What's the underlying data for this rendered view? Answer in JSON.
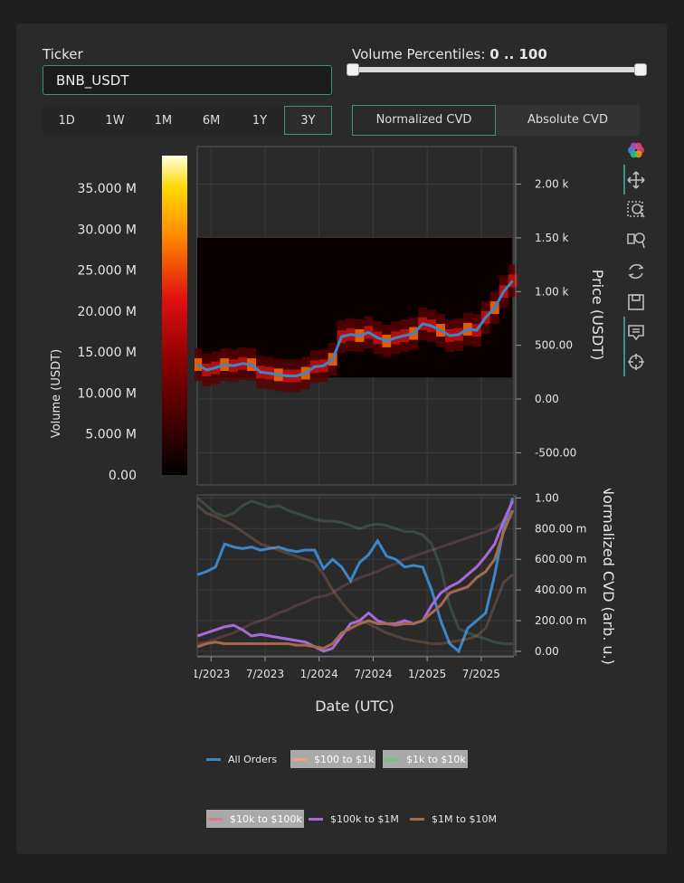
{
  "ticker": {
    "label": "Ticker",
    "value": "BNB_USDT"
  },
  "volume_percentiles": {
    "label": "Volume Percentiles:",
    "range": "0 .. 100",
    "low": 0,
    "high": 100
  },
  "time_ranges": [
    "1D",
    "1W",
    "1M",
    "6M",
    "1Y",
    "3Y"
  ],
  "time_range_selected": "3Y",
  "cvd_modes": [
    "Normalized CVD",
    "Absolute CVD"
  ],
  "cvd_mode_selected": "Normalized CVD",
  "toolbar": [
    "bokeh-logo-icon",
    "pan-icon",
    "box-zoom-icon",
    "wheel-zoom-icon",
    "reset-icon",
    "save-icon",
    "hover-icon",
    "crosshair-icon"
  ],
  "colorbar": {
    "title": "Volume (USDT)",
    "ticks": [
      "35.000 M",
      "30.000 M",
      "25.000 M",
      "20.000 M",
      "15.000 M",
      "10.000 M",
      "5.000 M",
      "0.00"
    ],
    "tick_values": [
      35,
      30,
      25,
      20,
      15,
      10,
      5,
      0
    ],
    "max": 39
  },
  "chart_data": [
    {
      "type": "line",
      "title": "",
      "ylabel": "Price (USDT)",
      "ylim": [
        -800,
        2350
      ],
      "yticks": [
        -500,
        0,
        500,
        1000,
        1500,
        2000
      ],
      "ytick_labels": [
        "-500.00",
        "0.00",
        "500.00",
        "1.00 k",
        "1.50 k",
        "2.00 k"
      ],
      "xlim": [
        "2022-11-15",
        "2025-10-20"
      ],
      "heatmap_band": [
        200,
        1500
      ],
      "series": [
        {
          "color": "#3a86c8",
          "x": [
            "2022-11",
            "2022-12",
            "2023-01",
            "2023-02",
            "2023-03",
            "2023-04",
            "2023-05",
            "2023-06",
            "2023-07",
            "2023-08",
            "2023-09",
            "2023-10",
            "2023-11",
            "2023-12",
            "2024-01",
            "2024-02",
            "2024-03",
            "2024-04",
            "2024-05",
            "2024-06",
            "2024-07",
            "2024-08",
            "2024-09",
            "2024-10",
            "2024-11",
            "2024-12",
            "2025-01",
            "2025-02",
            "2025-03",
            "2025-04",
            "2025-05",
            "2025-06",
            "2025-07",
            "2025-08",
            "2025-09",
            "2025-10"
          ],
          "values": [
            320,
            270,
            290,
            320,
            310,
            330,
            320,
            250,
            240,
            225,
            215,
            215,
            240,
            300,
            310,
            370,
            580,
            600,
            590,
            620,
            570,
            540,
            570,
            590,
            610,
            700,
            680,
            640,
            590,
            600,
            650,
            640,
            760,
            850,
            1000,
            1100
          ]
        }
      ]
    },
    {
      "type": "line",
      "ylabel": "Normalized CVD (arb. u.)",
      "xlabel": "Date (UTC)",
      "ylim": [
        -0.03,
        1.02
      ],
      "yticks": [
        0,
        0.2,
        0.4,
        0.6,
        0.8,
        1.0
      ],
      "ytick_labels": [
        "0.00",
        "200.00 m",
        "400.00 m",
        "600.00 m",
        "800.00 m",
        "1.00"
      ],
      "xticks": [
        "2023-01",
        "2023-07",
        "2024-01",
        "2024-07",
        "2025-01",
        "2025-07"
      ],
      "xtick_labels": [
        "1/2023",
        "7/2023",
        "1/2024",
        "7/2024",
        "1/2025",
        "7/2025"
      ],
      "x": [
        "2022-11",
        "2022-12",
        "2023-01",
        "2023-02",
        "2023-03",
        "2023-04",
        "2023-05",
        "2023-06",
        "2023-07",
        "2023-08",
        "2023-09",
        "2023-10",
        "2023-11",
        "2023-12",
        "2024-01",
        "2024-02",
        "2024-03",
        "2024-04",
        "2024-05",
        "2024-06",
        "2024-07",
        "2024-08",
        "2024-09",
        "2024-10",
        "2024-11",
        "2024-12",
        "2025-01",
        "2025-02",
        "2025-03",
        "2025-04",
        "2025-05",
        "2025-06",
        "2025-07",
        "2025-08",
        "2025-09",
        "2025-10"
      ],
      "series": [
        {
          "name": "All Orders",
          "color": "#3a86c8",
          "visible": true,
          "values": [
            0.5,
            0.52,
            0.55,
            0.7,
            0.68,
            0.67,
            0.68,
            0.66,
            0.67,
            0.68,
            0.66,
            0.65,
            0.66,
            0.66,
            0.54,
            0.6,
            0.55,
            0.46,
            0.58,
            0.63,
            0.72,
            0.62,
            0.6,
            0.55,
            0.56,
            0.55,
            0.4,
            0.2,
            0.05,
            0.0,
            0.15,
            0.2,
            0.25,
            0.5,
            0.8,
            1.0
          ]
        },
        {
          "name": "$100 to $1k",
          "color": "#f0a07c",
          "visible": false,
          "values": [
            0.95,
            0.9,
            0.88,
            0.85,
            0.82,
            0.78,
            0.74,
            0.7,
            0.68,
            0.66,
            0.64,
            0.62,
            0.6,
            0.58,
            0.5,
            0.4,
            0.32,
            0.25,
            0.2,
            0.18,
            0.15,
            0.12,
            0.1,
            0.08,
            0.07,
            0.06,
            0.05,
            0.05,
            0.06,
            0.07,
            0.08,
            0.1,
            0.15,
            0.3,
            0.45,
            0.5
          ]
        },
        {
          "name": "$1k to $10k",
          "color": "#6fc28a",
          "visible": false,
          "values": [
            1.0,
            0.95,
            0.9,
            0.88,
            0.9,
            0.95,
            0.98,
            0.96,
            0.94,
            0.95,
            0.92,
            0.9,
            0.88,
            0.86,
            0.85,
            0.85,
            0.84,
            0.82,
            0.8,
            0.82,
            0.83,
            0.82,
            0.8,
            0.78,
            0.78,
            0.76,
            0.7,
            0.55,
            0.3,
            0.15,
            0.12,
            0.1,
            0.08,
            0.06,
            0.05,
            0.05
          ]
        },
        {
          "name": "$10k to $100k",
          "color": "#e07a84",
          "visible": false,
          "values": [
            0.05,
            0.06,
            0.08,
            0.1,
            0.12,
            0.15,
            0.18,
            0.2,
            0.22,
            0.25,
            0.27,
            0.3,
            0.32,
            0.35,
            0.36,
            0.38,
            0.42,
            0.45,
            0.48,
            0.5,
            0.52,
            0.55,
            0.57,
            0.6,
            0.62,
            0.64,
            0.66,
            0.68,
            0.7,
            0.72,
            0.74,
            0.76,
            0.78,
            0.8,
            0.85,
            0.88
          ]
        },
        {
          "name": "$100k to $1M",
          "color": "#a66bd6",
          "visible": true,
          "values": [
            0.1,
            0.12,
            0.14,
            0.16,
            0.17,
            0.14,
            0.1,
            0.11,
            0.1,
            0.09,
            0.08,
            0.07,
            0.06,
            0.03,
            0.0,
            0.02,
            0.1,
            0.18,
            0.2,
            0.25,
            0.2,
            0.18,
            0.18,
            0.2,
            0.18,
            0.2,
            0.3,
            0.38,
            0.42,
            0.45,
            0.5,
            0.55,
            0.62,
            0.7,
            0.85,
            0.98
          ]
        },
        {
          "name": "$1M to $10M",
          "color": "#a56a4e",
          "visible": true,
          "values": [
            0.03,
            0.05,
            0.06,
            0.05,
            0.05,
            0.05,
            0.05,
            0.05,
            0.05,
            0.05,
            0.05,
            0.04,
            0.04,
            0.03,
            0.02,
            0.05,
            0.12,
            0.15,
            0.18,
            0.2,
            0.18,
            0.18,
            0.17,
            0.18,
            0.18,
            0.2,
            0.25,
            0.3,
            0.38,
            0.4,
            0.42,
            0.48,
            0.52,
            0.6,
            0.78,
            0.92
          ]
        }
      ]
    }
  ],
  "axis_titles": {
    "price": "Price (USDT)",
    "cvd": "Normalized CVD (arb. u.)",
    "date": "Date (UTC)"
  }
}
